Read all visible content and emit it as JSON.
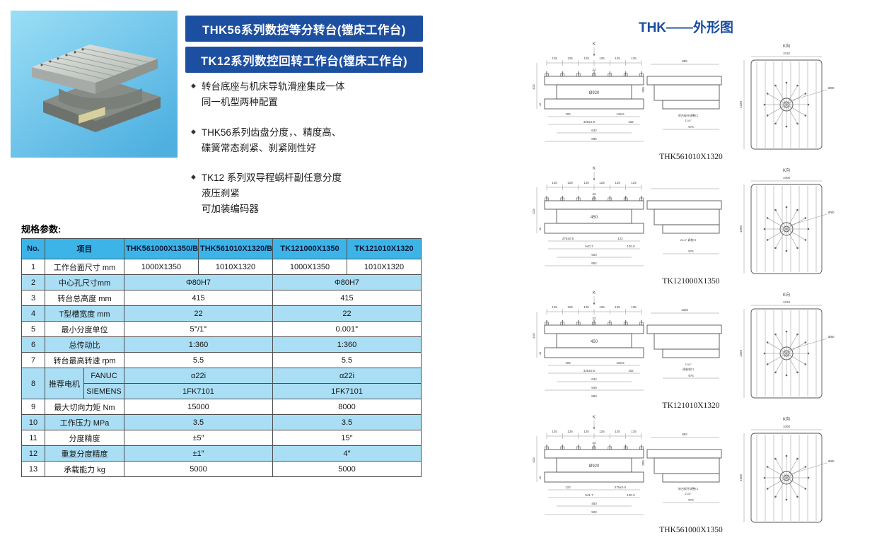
{
  "colors": {
    "banner_blue": "#1d4fa0",
    "title_blue": "#1a4da0",
    "table_header_blue": "#3cb4e7",
    "table_row_blue": "#aadef5",
    "photo_bg_top": "#9adef6",
    "photo_bg_bottom": "#4fb0e0"
  },
  "banners": [
    "THK56系列数控等分转台(镗床工作台)",
    "TK12系列数控回转工作台(镗床工作台)"
  ],
  "features": {
    "bullet": "◆",
    "items": [
      {
        "text": "转台底座与机床导轨滑座集成一体\n同一机型两种配置"
      },
      {
        "text": "THK56系列齿盘分度，、精度高、\n碟簧常态刹紧、刹紧刚性好"
      },
      {
        "text": "TK12 系列双导程蜗杆副任意分度\n液压刹紧\n可加装编码器"
      }
    ]
  },
  "specs": {
    "caption": "规格参数:",
    "headers": [
      "No.",
      "项目",
      "THK561000X1350/B",
      "THK561010X1320/B",
      "TK121000X1350",
      "TK121010X1320"
    ],
    "rows": [
      {
        "no": "1",
        "label": "工作台面尺寸 mm",
        "shade": false,
        "values": [
          {
            "t": "1000X1350"
          },
          {
            "t": "1010X1320"
          },
          {
            "t": "1000X1350"
          },
          {
            "t": "1010X1320"
          }
        ]
      },
      {
        "no": "2",
        "label": "中心孔尺寸mm",
        "shade": true,
        "values": [
          {
            "t": "Φ80H7",
            "span": 2
          },
          {
            "t": "Φ80H7",
            "span": 2
          }
        ]
      },
      {
        "no": "3",
        "label": "转台总高度 mm",
        "shade": false,
        "values": [
          {
            "t": "415",
            "span": 2
          },
          {
            "t": "415",
            "span": 2
          }
        ]
      },
      {
        "no": "4",
        "label": "T型槽宽度 mm",
        "shade": true,
        "values": [
          {
            "t": "22",
            "span": 2
          },
          {
            "t": "22",
            "span": 2
          }
        ]
      },
      {
        "no": "5",
        "label": "最小分度单位",
        "shade": false,
        "values": [
          {
            "t": "5°/1°",
            "span": 2
          },
          {
            "t": "0.001°",
            "span": 2
          }
        ]
      },
      {
        "no": "6",
        "label": "总传动比",
        "shade": true,
        "values": [
          {
            "t": "1:360",
            "span": 2
          },
          {
            "t": "1:360",
            "span": 2
          }
        ]
      },
      {
        "no": "7",
        "label": "转台最高转速 rpm",
        "shade": false,
        "values": [
          {
            "t": "5.5",
            "span": 2
          },
          {
            "t": "5.5",
            "span": 2
          }
        ]
      },
      {
        "no": "8",
        "label": "推荐电机",
        "shade": true,
        "sub": [
          {
            "name": "FANUC",
            "values": [
              {
                "t": "α22i",
                "span": 2
              },
              {
                "t": "α22i",
                "span": 2
              }
            ]
          },
          {
            "name": "SIEMENS",
            "values": [
              {
                "t": "1FK7101",
                "span": 2
              },
              {
                "t": "1FK7101",
                "span": 2
              }
            ]
          }
        ]
      },
      {
        "no": "9",
        "label": "最大切向力矩 Nm",
        "shade": false,
        "values": [
          {
            "t": "15000",
            "span": 2
          },
          {
            "t": "8000",
            "span": 2
          }
        ]
      },
      {
        "no": "10",
        "label": "工作压力 MPa",
        "shade": true,
        "values": [
          {
            "t": "3.5",
            "span": 2
          },
          {
            "t": "3.5",
            "span": 2
          }
        ]
      },
      {
        "no": "11",
        "label": "分度精度",
        "shade": false,
        "values": [
          {
            "t": "±5″",
            "span": 2
          },
          {
            "t": "15″",
            "span": 2
          }
        ]
      },
      {
        "no": "12",
        "label": "重复分度精度",
        "shade": true,
        "values": [
          {
            "t": "±1″",
            "span": 2
          },
          {
            "t": "4″",
            "span": 2
          }
        ]
      },
      {
        "no": "13",
        "label": "承载能力 kg",
        "shade": false,
        "values": [
          {
            "t": "5000",
            "span": 2
          },
          {
            "t": "5000",
            "span": 2
          }
        ]
      }
    ]
  },
  "diagram": {
    "title": "THK——外形图",
    "drawings": [
      {
        "label": "THK561010X1320",
        "k_mark": "K",
        "view_label": "K向",
        "pitch": "125",
        "slot": "22",
        "body": "Ø920",
        "height": "415",
        "base": "40",
        "mid": [
          "102",
          "129.5",
          "328±0.5",
          "152"
        ],
        "bot": [
          "642",
          "896",
          ""
        ],
        "side_top": "885",
        "side_h": "200",
        "note1": "转台板开调整口",
        "note2": "Z1/4″",
        "side_bot": "974",
        "top_w": "1010",
        "top_h": "1320",
        "center": "Ø80"
      },
      {
        "label": "TK121000X1350",
        "k_mark": "K",
        "view_label": "K向",
        "pitch": "125",
        "slot": "22",
        "body": "450",
        "height": "415",
        "base": "40",
        "mid": [
          "275±0.5",
          "122",
          "540.7",
          "130.5"
        ],
        "bot": [
          "920",
          "852",
          ""
        ],
        "side_top": "",
        "side_h": "",
        "note1": "Z1/4″ 调装口",
        "note2": "",
        "side_bot": "974",
        "top_w": "1000",
        "top_h": "1350",
        "center": "Ø80"
      },
      {
        "label": "TK121010X1320",
        "k_mark": "K",
        "view_label": "K向",
        "pitch": "125",
        "slot": "22",
        "body": "450",
        "height": "415",
        "base": "40",
        "mid": [
          "102",
          "129.5",
          "328±0.5",
          "152"
        ],
        "bot": [
          "642",
          "940",
          "860"
        ],
        "side_top": "1320",
        "side_h": "",
        "note1": "Z1/4″",
        "note2": "调装刹口",
        "side_bot": "974",
        "top_w": "1010",
        "top_h": "1320",
        "center": "Ø80"
      },
      {
        "label": "THK561000X1350",
        "k_mark": "K",
        "view_label": "K向",
        "pitch": "125",
        "slot": "22",
        "body": "Ø920",
        "height": "415",
        "base": "40",
        "mid": [
          "122",
          "275±0.5",
          "541.7",
          "130.3"
        ],
        "bot": [
          "450",
          "920",
          ""
        ],
        "side_top": "882",
        "side_h": "200",
        "note1": "转台板开调整口",
        "note2": "Z1/4″",
        "side_bot": "974",
        "top_w": "1000",
        "top_h": "1350",
        "center": "Ø80"
      }
    ]
  }
}
